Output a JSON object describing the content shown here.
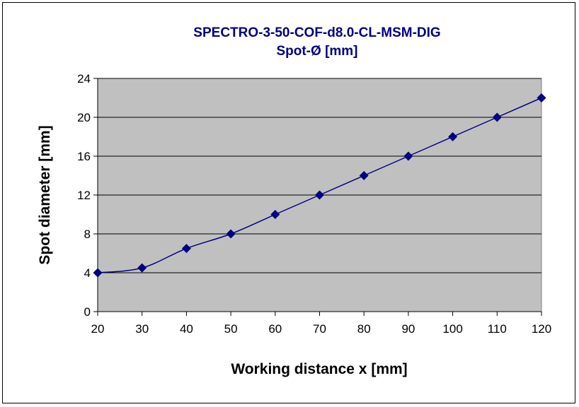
{
  "chart_data": {
    "type": "line",
    "title": "SPECTRO-3-50-COF-d8.0-CL-MSM-DIG",
    "subtitle": "Spot-Ø [mm]",
    "xlabel": "Working distance x [mm]",
    "ylabel": "Spot diameter [mm]",
    "xlim": [
      20,
      120
    ],
    "ylim": [
      0,
      24
    ],
    "x_ticks": [
      20,
      30,
      40,
      50,
      60,
      70,
      80,
      90,
      100,
      110,
      120
    ],
    "y_ticks": [
      0,
      4,
      8,
      12,
      16,
      20,
      24
    ],
    "grid": "horizontal",
    "legend": "none",
    "series": [
      {
        "x": [
          20,
          30,
          40,
          50,
          60,
          70,
          80,
          90,
          100,
          110,
          120
        ],
        "y": [
          4,
          4.5,
          6.5,
          8,
          10,
          12,
          14,
          16,
          18,
          20,
          22
        ]
      }
    ],
    "colors": {
      "plot_background": "#c0c0c0",
      "series": "#000080",
      "title": "#000080",
      "grid": "#000000"
    }
  }
}
